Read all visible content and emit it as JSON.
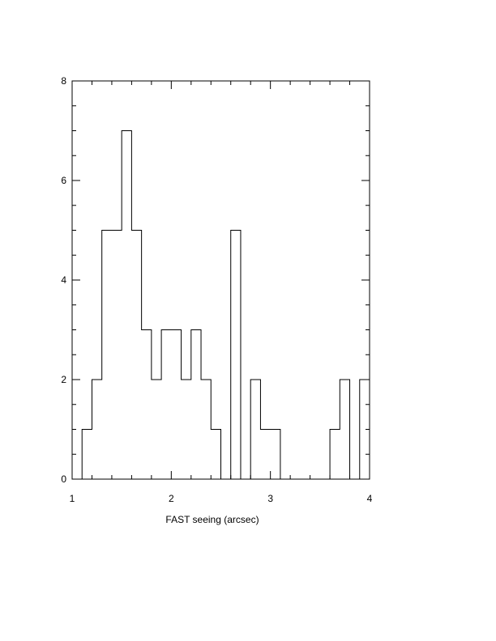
{
  "chart_data": {
    "type": "bar",
    "style": "step-histogram",
    "title": "",
    "xlabel": "FAST seeing (arcsec)",
    "ylabel": "",
    "xlim": [
      1,
      4
    ],
    "ylim": [
      0,
      8
    ],
    "bin_width": 0.1,
    "bin_starts": [
      1.1,
      1.2,
      1.3,
      1.4,
      1.5,
      1.6,
      1.7,
      1.8,
      1.9,
      2.0,
      2.1,
      2.2,
      2.3,
      2.4,
      2.5,
      2.6,
      2.7,
      2.8,
      2.9,
      3.0,
      3.1,
      3.2,
      3.3,
      3.4,
      3.5,
      3.6,
      3.7,
      3.8,
      3.9
    ],
    "values": [
      1,
      2,
      5,
      5,
      7,
      5,
      3,
      2,
      3,
      3,
      2,
      3,
      2,
      1,
      0,
      5,
      0,
      2,
      1,
      1,
      0,
      0,
      0,
      0,
      0,
      1,
      2,
      0,
      2
    ],
    "x_ticks": [
      "1",
      "2",
      "3",
      "4"
    ],
    "y_ticks": [
      "0",
      "2",
      "4",
      "6",
      "8"
    ],
    "grid": false,
    "line_color": "#000000"
  }
}
